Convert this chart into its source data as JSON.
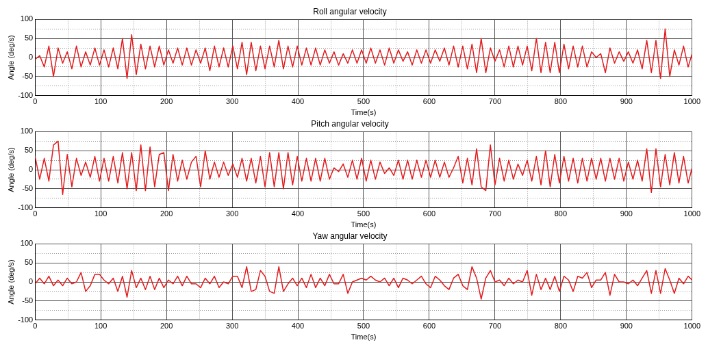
{
  "chart_data": [
    {
      "type": "line",
      "title": "Roll angular velocity",
      "xlabel": "Time(s)",
      "ylabel": "Angle (deg/s)",
      "xlim": [
        0,
        1000
      ],
      "ylim": [
        -100,
        100
      ],
      "xticks": [
        0,
        {
          "value": 50,
          "label": null
        },
        100,
        {
          "value": 150,
          "label": null
        },
        200,
        {
          "value": 250,
          "label": null
        },
        300,
        {
          "value": 350,
          "label": null
        },
        400,
        {
          "value": 450,
          "label": null
        },
        500,
        {
          "value": 550,
          "label": null
        },
        600,
        {
          "value": 650,
          "label": null
        },
        700,
        {
          "value": 750,
          "label": null
        },
        800,
        {
          "value": 850,
          "label": null
        },
        900,
        {
          "value": 950,
          "label": null
        },
        1000
      ],
      "yticks": [
        -100,
        {
          "value": -75,
          "label": null
        },
        -50,
        {
          "value": -25,
          "label": null
        },
        0,
        {
          "value": 25,
          "label": null
        },
        50,
        {
          "value": 75,
          "label": null
        },
        100
      ],
      "grid": true,
      "marker": "none",
      "line_style": "solid",
      "x": [
        0,
        7,
        14,
        21,
        28,
        35,
        42,
        49,
        56,
        63,
        70,
        77,
        84,
        91,
        98,
        105,
        112,
        119,
        126,
        133,
        140,
        147,
        154,
        161,
        168,
        175,
        182,
        189,
        196,
        203,
        210,
        217,
        224,
        231,
        238,
        245,
        252,
        259,
        266,
        273,
        280,
        287,
        294,
        301,
        308,
        315,
        322,
        329,
        336,
        343,
        350,
        357,
        364,
        371,
        378,
        385,
        392,
        399,
        406,
        413,
        420,
        427,
        434,
        441,
        448,
        455,
        462,
        469,
        476,
        483,
        490,
        497,
        504,
        511,
        518,
        525,
        532,
        539,
        546,
        553,
        560,
        567,
        574,
        581,
        588,
        595,
        602,
        609,
        616,
        623,
        630,
        637,
        644,
        651,
        658,
        665,
        672,
        679,
        686,
        693,
        700,
        707,
        714,
        721,
        728,
        735,
        742,
        749,
        756,
        763,
        770,
        777,
        784,
        791,
        798,
        805,
        812,
        819,
        826,
        833,
        840,
        847,
        854,
        861,
        868,
        875,
        882,
        889,
        896,
        903,
        910,
        917,
        924,
        931,
        938,
        945,
        952,
        959,
        966,
        973,
        980,
        987,
        994,
        1000
      ],
      "series": [
        {
          "color": "#e31a1c",
          "values": [
            -5,
            5,
            -25,
            30,
            -50,
            25,
            -15,
            15,
            -30,
            30,
            -25,
            15,
            -20,
            25,
            -20,
            20,
            -25,
            25,
            -30,
            50,
            -55,
            60,
            -45,
            35,
            -30,
            30,
            -25,
            30,
            -20,
            20,
            -15,
            25,
            -20,
            25,
            -20,
            20,
            -15,
            25,
            -35,
            30,
            -25,
            25,
            -25,
            30,
            -30,
            40,
            -45,
            40,
            -35,
            30,
            -30,
            30,
            -25,
            45,
            -30,
            30,
            -25,
            30,
            -20,
            25,
            -20,
            25,
            -20,
            20,
            -15,
            15,
            -20,
            10,
            -15,
            20,
            -15,
            20,
            -15,
            25,
            -15,
            20,
            -20,
            25,
            -15,
            20,
            -10,
            15,
            -20,
            20,
            -15,
            20,
            -15,
            20,
            -10,
            25,
            -20,
            30,
            -25,
            30,
            -30,
            35,
            -40,
            50,
            -40,
            25,
            -10,
            20,
            -25,
            30,
            -25,
            30,
            -20,
            30,
            -35,
            50,
            -40,
            40,
            -40,
            40,
            -40,
            35,
            -30,
            30,
            -25,
            30,
            -25,
            15,
            0,
            10,
            -40,
            25,
            -15,
            15,
            -10,
            15,
            -15,
            20,
            -30,
            45,
            -40,
            45,
            -55,
            75,
            -50,
            20,
            -20,
            30,
            -25,
            10
          ]
        }
      ]
    },
    {
      "type": "line",
      "title": "Pitch angular velocity",
      "xlabel": "Time(s)",
      "ylabel": "Angle (deg/s)",
      "xlim": [
        0,
        1000
      ],
      "ylim": [
        -100,
        100
      ],
      "xticks": [
        0,
        {
          "value": 50,
          "label": null
        },
        100,
        {
          "value": 150,
          "label": null
        },
        200,
        {
          "value": 250,
          "label": null
        },
        300,
        {
          "value": 350,
          "label": null
        },
        400,
        {
          "value": 450,
          "label": null
        },
        500,
        {
          "value": 550,
          "label": null
        },
        600,
        {
          "value": 650,
          "label": null
        },
        700,
        {
          "value": 750,
          "label": null
        },
        800,
        {
          "value": 850,
          "label": null
        },
        900,
        {
          "value": 950,
          "label": null
        },
        1000
      ],
      "yticks": [
        -100,
        {
          "value": -75,
          "label": null
        },
        -50,
        {
          "value": -25,
          "label": null
        },
        0,
        {
          "value": 25,
          "label": null
        },
        50,
        {
          "value": 75,
          "label": null
        },
        100
      ],
      "grid": true,
      "marker": "none",
      "line_style": "solid",
      "x": [
        0,
        7,
        14,
        21,
        28,
        35,
        42,
        49,
        56,
        63,
        70,
        77,
        84,
        91,
        98,
        105,
        112,
        119,
        126,
        133,
        140,
        147,
        154,
        161,
        168,
        175,
        182,
        189,
        196,
        203,
        210,
        217,
        224,
        231,
        238,
        245,
        252,
        259,
        266,
        273,
        280,
        287,
        294,
        301,
        308,
        315,
        322,
        329,
        336,
        343,
        350,
        357,
        364,
        371,
        378,
        385,
        392,
        399,
        406,
        413,
        420,
        427,
        434,
        441,
        448,
        455,
        462,
        469,
        476,
        483,
        490,
        497,
        504,
        511,
        518,
        525,
        532,
        539,
        546,
        553,
        560,
        567,
        574,
        581,
        588,
        595,
        602,
        609,
        616,
        623,
        630,
        637,
        644,
        651,
        658,
        665,
        672,
        679,
        686,
        693,
        700,
        707,
        714,
        721,
        728,
        735,
        742,
        749,
        756,
        763,
        770,
        777,
        784,
        791,
        798,
        805,
        812,
        819,
        826,
        833,
        840,
        847,
        854,
        861,
        868,
        875,
        882,
        889,
        896,
        903,
        910,
        917,
        924,
        931,
        938,
        945,
        952,
        959,
        966,
        973,
        980,
        987,
        994,
        1000
      ],
      "series": [
        {
          "color": "#e31a1c",
          "values": [
            35,
            -25,
            30,
            -30,
            65,
            75,
            -65,
            40,
            -45,
            30,
            -15,
            20,
            -20,
            35,
            -30,
            30,
            -30,
            35,
            -35,
            45,
            -50,
            45,
            -55,
            65,
            -55,
            60,
            -45,
            40,
            45,
            -55,
            40,
            -30,
            25,
            -25,
            20,
            35,
            -45,
            50,
            -25,
            20,
            -20,
            20,
            -15,
            15,
            -20,
            30,
            -30,
            30,
            -35,
            35,
            -45,
            45,
            -45,
            45,
            -50,
            45,
            -40,
            35,
            -30,
            30,
            -30,
            30,
            -30,
            30,
            -25,
            5,
            -5,
            15,
            -20,
            25,
            -25,
            30,
            -30,
            25,
            -25,
            20,
            -10,
            5,
            -15,
            25,
            -25,
            25,
            -25,
            25,
            -20,
            25,
            -20,
            25,
            -20,
            20,
            -20,
            5,
            35,
            -35,
            30,
            -40,
            55,
            -45,
            -55,
            65,
            -40,
            30,
            -30,
            25,
            -25,
            15,
            -15,
            25,
            -30,
            35,
            -40,
            50,
            -45,
            40,
            -35,
            35,
            -30,
            30,
            -35,
            30,
            -30,
            30,
            -25,
            30,
            -30,
            30,
            -25,
            30,
            -30,
            20,
            -25,
            25,
            -30,
            55,
            -60,
            55,
            -45,
            40,
            -40,
            45,
            -35,
            35,
            -35,
            5
          ]
        }
      ]
    },
    {
      "type": "line",
      "title": "Yaw angular velocity",
      "xlabel": "Time(s)",
      "ylabel": "Angle (deg/s)",
      "xlim": [
        0,
        1000
      ],
      "ylim": [
        -100,
        100
      ],
      "xticks": [
        0,
        {
          "value": 50,
          "label": null
        },
        100,
        {
          "value": 150,
          "label": null
        },
        200,
        {
          "value": 250,
          "label": null
        },
        300,
        {
          "value": 350,
          "label": null
        },
        400,
        {
          "value": 450,
          "label": null
        },
        500,
        {
          "value": 550,
          "label": null
        },
        600,
        {
          "value": 650,
          "label": null
        },
        700,
        {
          "value": 750,
          "label": null
        },
        800,
        {
          "value": 850,
          "label": null
        },
        900,
        {
          "value": 950,
          "label": null
        },
        1000
      ],
      "yticks": [
        -100,
        {
          "value": -75,
          "label": null
        },
        -50,
        {
          "value": -25,
          "label": null
        },
        0,
        {
          "value": 25,
          "label": null
        },
        50,
        {
          "value": 75,
          "label": null
        },
        100
      ],
      "grid": true,
      "marker": "none",
      "line_style": "solid",
      "x": [
        0,
        7,
        14,
        21,
        28,
        35,
        42,
        49,
        56,
        63,
        70,
        77,
        84,
        91,
        98,
        105,
        112,
        119,
        126,
        133,
        140,
        147,
        154,
        161,
        168,
        175,
        182,
        189,
        196,
        203,
        210,
        217,
        224,
        231,
        238,
        245,
        252,
        259,
        266,
        273,
        280,
        287,
        294,
        301,
        308,
        315,
        322,
        329,
        336,
        343,
        350,
        357,
        364,
        371,
        378,
        385,
        392,
        399,
        406,
        413,
        420,
        427,
        434,
        441,
        448,
        455,
        462,
        469,
        476,
        483,
        490,
        497,
        504,
        511,
        518,
        525,
        532,
        539,
        546,
        553,
        560,
        567,
        574,
        581,
        588,
        595,
        602,
        609,
        616,
        623,
        630,
        637,
        644,
        651,
        658,
        665,
        672,
        679,
        686,
        693,
        700,
        707,
        714,
        721,
        728,
        735,
        742,
        749,
        756,
        763,
        770,
        777,
        784,
        791,
        798,
        805,
        812,
        819,
        826,
        833,
        840,
        847,
        854,
        861,
        868,
        875,
        882,
        889,
        896,
        903,
        910,
        917,
        924,
        931,
        938,
        945,
        952,
        959,
        966,
        973,
        980,
        987,
        994,
        1000
      ],
      "series": [
        {
          "color": "#e31a1c",
          "values": [
            -5,
            10,
            -5,
            15,
            -10,
            5,
            -10,
            10,
            -5,
            0,
            25,
            -25,
            -10,
            20,
            20,
            5,
            -5,
            10,
            -25,
            15,
            -40,
            30,
            -15,
            10,
            -20,
            15,
            -20,
            10,
            -15,
            5,
            -5,
            15,
            -10,
            15,
            -5,
            -5,
            -15,
            10,
            -5,
            15,
            -15,
            0,
            -5,
            15,
            15,
            -15,
            40,
            -25,
            -20,
            30,
            15,
            -25,
            -30,
            40,
            -25,
            -5,
            10,
            -10,
            10,
            -15,
            20,
            -15,
            10,
            -10,
            20,
            -5,
            -5,
            20,
            -30,
            0,
            5,
            10,
            5,
            15,
            5,
            0,
            10,
            -10,
            10,
            -15,
            10,
            5,
            -5,
            5,
            15,
            -5,
            -15,
            15,
            5,
            -10,
            -20,
            10,
            20,
            -10,
            -20,
            40,
            10,
            -45,
            10,
            30,
            0,
            5,
            -10,
            10,
            -5,
            5,
            0,
            30,
            -35,
            20,
            -20,
            10,
            -20,
            15,
            -25,
            15,
            5,
            -25,
            15,
            10,
            25,
            -15,
            5,
            5,
            25,
            -35,
            20,
            0,
            0,
            -5,
            5,
            -10,
            10,
            30,
            -30,
            30,
            -30,
            35,
            5,
            -30,
            10,
            -5,
            15,
            5
          ]
        }
      ]
    }
  ]
}
